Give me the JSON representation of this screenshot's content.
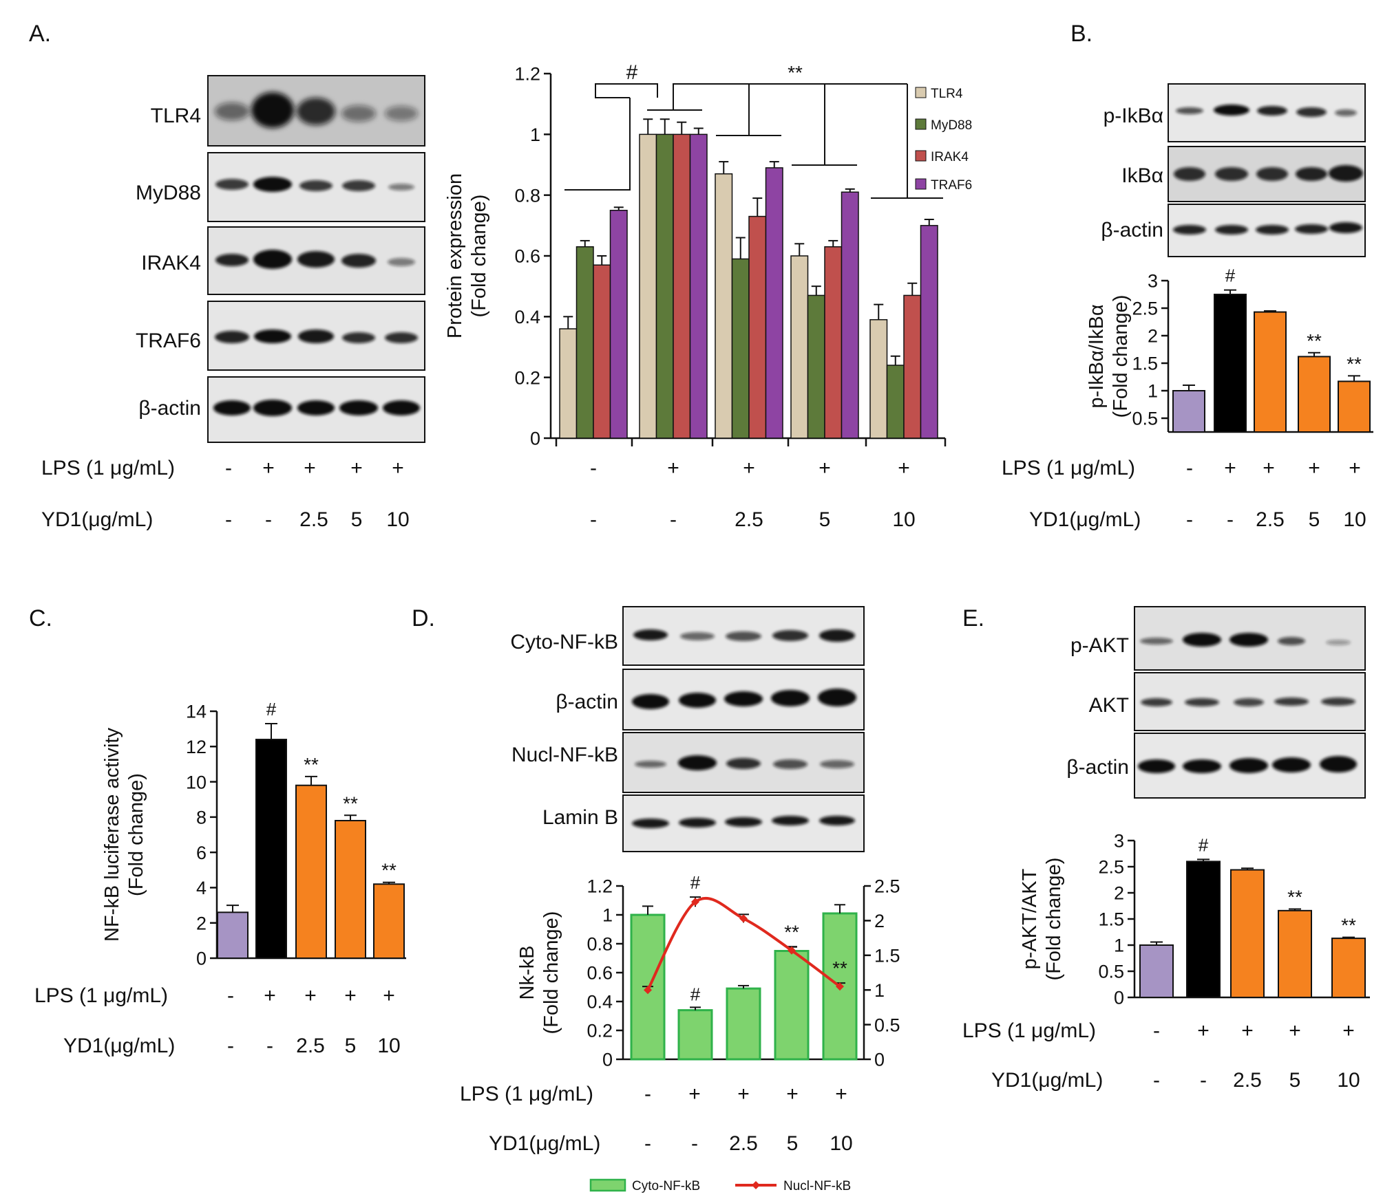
{
  "panels": {
    "A": {
      "letter": "A.",
      "blot_labels": [
        "TLR4",
        "MyD88",
        "IRAK4",
        "TRAF6",
        "β-actin"
      ],
      "lps_label": "LPS (1 μg/mL)",
      "yd1_label": "YD1(μg/mL)",
      "lps_values": [
        "-",
        "+",
        "+",
        "+",
        "+"
      ],
      "yd1_values": [
        "-",
        "-",
        "2.5",
        "5",
        "10"
      ]
    },
    "B": {
      "letter": "B.",
      "blot_labels": [
        "p-IkBα",
        "IkBα",
        "β-actin"
      ],
      "lps_label": "LPS (1 μg/mL)",
      "yd1_label": "YD1(μg/mL)",
      "lps_values": [
        "-",
        "+",
        "+",
        "+",
        "+"
      ],
      "yd1_values": [
        "-",
        "-",
        "2.5",
        "5",
        "10"
      ]
    },
    "C": {
      "letter": "C.",
      "lps_label": "LPS (1 μg/mL)",
      "yd1_label": "YD1(μg/mL)",
      "lps_values": [
        "-",
        "+",
        "+",
        "+",
        "+"
      ],
      "yd1_values": [
        "-",
        "-",
        "2.5",
        "5",
        "10"
      ]
    },
    "D": {
      "letter": "D.",
      "blot_labels": [
        "Cyto-NF-kB",
        "β-actin",
        "Nucl-NF-kB",
        "Lamin B"
      ],
      "lps_label": "LPS (1 μg/mL)",
      "yd1_label": "YD1(μg/mL)",
      "lps_values": [
        "-",
        "+",
        "+",
        "+",
        "+"
      ],
      "yd1_values": [
        "-",
        "-",
        "2.5",
        "5",
        "10"
      ]
    },
    "E": {
      "letter": "E.",
      "blot_labels": [
        "p-AKT",
        "AKT",
        "β-actin"
      ],
      "lps_label": "LPS (1 μg/mL)",
      "yd1_label": "YD1(μg/mL)",
      "lps_values": [
        "-",
        "+",
        "+",
        "+",
        "+"
      ],
      "yd1_values": [
        "-",
        "-",
        "2.5",
        "5",
        "10"
      ]
    }
  },
  "colors": {
    "tlr4": "#d9cbb0",
    "myd88": "#5d7a3a",
    "irak4": "#c0504d",
    "traf6": "#8e44a3",
    "control": "#a694c4",
    "lps": "#000000",
    "yd1": "#f5821f",
    "cyto": "#7ed36e",
    "cyto_edge": "#2fb24a",
    "nucl": "#e0291e"
  },
  "chart_data": [
    {
      "id": "A",
      "type": "bar",
      "categories": [
        "-/-",
        "+/-",
        "+/2.5",
        "+/5",
        "+/10"
      ],
      "series": [
        {
          "name": "TLR4",
          "values": [
            0.36,
            1.0,
            0.87,
            0.6,
            0.39
          ],
          "errors": [
            0.04,
            0.05,
            0.04,
            0.04,
            0.05
          ]
        },
        {
          "name": "MyD88",
          "values": [
            0.63,
            1.0,
            0.59,
            0.47,
            0.24
          ],
          "errors": [
            0.02,
            0.05,
            0.07,
            0.03,
            0.03
          ]
        },
        {
          "name": "IRAK4",
          "values": [
            0.57,
            1.0,
            0.73,
            0.63,
            0.47
          ],
          "errors": [
            0.03,
            0.04,
            0.06,
            0.02,
            0.04
          ]
        },
        {
          "name": "TRAF6",
          "values": [
            0.75,
            1.0,
            0.89,
            0.81,
            0.7
          ],
          "errors": [
            0.01,
            0.02,
            0.02,
            0.01,
            0.02
          ]
        }
      ],
      "ylabel": [
        "Protein expression",
        "(Fold change)"
      ],
      "ylim": [
        0,
        1.2
      ],
      "yticks": [
        "0",
        "0.2",
        "0.4",
        "0.6",
        "0.8",
        "1",
        "1.2"
      ],
      "annotations": [
        "#",
        "**"
      ],
      "legend": "top-right"
    },
    {
      "id": "B",
      "type": "bar",
      "categories": [
        "-/-",
        "+/-",
        "+/2.5",
        "+/5",
        "+/10"
      ],
      "values": [
        1.0,
        2.75,
        2.43,
        1.62,
        1.17
      ],
      "errors": [
        0.1,
        0.08,
        0.02,
        0.07,
        0.1
      ],
      "bar_labels": [
        "",
        "#",
        "",
        "**",
        "**"
      ],
      "ylabel": [
        "p-IkBα/IkBα",
        "(Fold change)"
      ],
      "ylim": [
        0.25,
        3
      ],
      "yticks": [
        "0.5",
        "1",
        "1.5",
        "2",
        "2.5",
        "3"
      ]
    },
    {
      "id": "C",
      "type": "bar",
      "categories": [
        "-/-",
        "+/-",
        "+/2.5",
        "+/5",
        "+/10"
      ],
      "values": [
        2.6,
        12.4,
        9.8,
        7.8,
        4.2
      ],
      "errors": [
        0.4,
        0.9,
        0.5,
        0.3,
        0.1
      ],
      "bar_labels": [
        "",
        "#",
        "**",
        "**",
        "**"
      ],
      "ylabel": [
        "NF-kB luciferase activity",
        "(Fold change)"
      ],
      "ylim": [
        0,
        14
      ],
      "yticks": [
        "0",
        "2",
        "4",
        "6",
        "8",
        "10",
        "12",
        "14"
      ]
    },
    {
      "id": "D",
      "type": "bar+line",
      "categories": [
        "-/-",
        "+/-",
        "+/2.5",
        "+/5",
        "+/10"
      ],
      "series": [
        {
          "name": "Cyto-NF-kB",
          "axis": "left",
          "values": [
            1.0,
            0.34,
            0.49,
            0.75,
            1.01
          ],
          "errors": [
            0.06,
            0.02,
            0.02,
            0.03,
            0.06
          ]
        },
        {
          "name": "Nucl-NF-kB",
          "axis": "right",
          "values": [
            1.0,
            2.27,
            2.03,
            1.57,
            1.05
          ],
          "errors": [
            0.05,
            0.07,
            0.06,
            0.05,
            0.05
          ]
        }
      ],
      "bar_labels": [
        "",
        "#",
        "",
        "",
        ""
      ],
      "line_labels": [
        "",
        "#",
        "",
        "**",
        "**"
      ],
      "ylabel": [
        "Nk-kB",
        "(Fold change)"
      ],
      "ylim": [
        0,
        1.2
      ],
      "y2lim": [
        0,
        2.5
      ],
      "yticks": [
        "0",
        "0.2",
        "0.4",
        "0.6",
        "0.8",
        "1",
        "1.2"
      ],
      "y2ticks": [
        "0",
        "0.5",
        "1",
        "1.5",
        "2",
        "2.5"
      ],
      "legend": "bottom"
    },
    {
      "id": "E",
      "type": "bar",
      "categories": [
        "-/-",
        "+/-",
        "+/2.5",
        "+/5",
        "+/10"
      ],
      "values": [
        1.0,
        2.6,
        2.44,
        1.66,
        1.13
      ],
      "errors": [
        0.06,
        0.04,
        0.03,
        0.03,
        0.02
      ],
      "bar_labels": [
        "",
        "#",
        "",
        "**",
        "**"
      ],
      "ylabel": [
        "p-AKT/AKT",
        "(Fold change)"
      ],
      "ylim": [
        0,
        3
      ],
      "yticks": [
        "0",
        "0.5",
        "1",
        "1.5",
        "2",
        "2.5",
        "3"
      ]
    }
  ]
}
